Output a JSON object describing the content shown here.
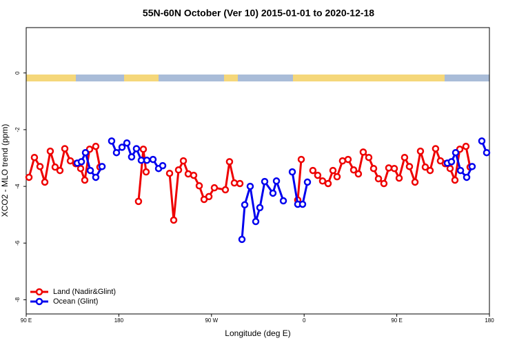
{
  "chart_data": {
    "type": "line",
    "title": "55N-60N October (Ver 10)   2015-01-01 to 2020-12-18",
    "x_label": "Longitude (deg E)",
    "y_label": "XCO2 - MLO trend (ppm)",
    "xlim": [
      90,
      540
    ],
    "xticks": [
      {
        "value": 90,
        "label": "90 E"
      },
      {
        "value": 180,
        "label": "180"
      },
      {
        "value": 270,
        "label": "90 W"
      },
      {
        "value": 360,
        "label": "0"
      },
      {
        "value": 450,
        "label": "90 E"
      },
      {
        "value": 540,
        "label": "180"
      }
    ],
    "ylim": [
      -8.5,
      1.6
    ],
    "yticks": [
      0,
      -2,
      -4,
      -6,
      -8
    ],
    "legend": "bottom-left",
    "series": [
      {
        "name": "Land (Nadir&Glint)",
        "color": "#ee0000",
        "x": [
          92.7,
          98.0,
          103.4,
          108.1,
          113.4,
          118.1,
          122.8,
          127.5,
          132.9,
          138.2,
          142.9,
          146.9,
          151.6,
          157.6,
          161.6,
          null,
          199.1,
          203.8,
          206.5,
          null,
          229.3,
          233.3,
          238.0,
          242.7,
          247.4,
          252.7,
          258.1,
          262.8,
          267.5,
          272.8,
          283.5,
          287.5,
          292.2,
          297.6,
          null,
          353.8,
          357.2,
          null,
          368.5,
          373.2,
          377.9,
          383.3,
          388.0,
          392.0,
          397.3,
          402.7,
          408.1,
          412.7,
          417.4,
          422.8,
          427.5,
          432.2,
          437.5,
          442.2,
          447.6,
          452.3,
          457.6,
          462.3,
          467.7,
          473.0,
          477.7,
          482.4,
          487.7,
          492.4,
          497.1,
          501.8,
          506.5,
          511.2,
          517.2,
          521.2
        ],
        "values": [
          -3.68,
          -2.98,
          -3.3,
          -3.85,
          -2.76,
          -3.32,
          -3.44,
          -2.67,
          -3.1,
          -3.2,
          -3.37,
          -3.78,
          -2.69,
          -2.59,
          -3.32,
          null,
          -4.53,
          -2.69,
          -3.49,
          null,
          -3.54,
          -5.19,
          -3.42,
          -3.1,
          -3.56,
          -3.61,
          -3.98,
          -4.46,
          -4.36,
          -4.05,
          -4.12,
          -3.13,
          -3.88,
          -3.9,
          null,
          -4.48,
          -3.05,
          null,
          -3.44,
          -3.61,
          -3.81,
          -3.9,
          -3.44,
          -3.66,
          -3.1,
          -3.05,
          -3.42,
          -3.56,
          -2.79,
          -2.98,
          -3.37,
          -3.73,
          -3.9,
          -3.35,
          -3.37,
          -3.71,
          -2.98,
          -3.3,
          -3.85,
          -2.76,
          -3.32,
          -3.44,
          -2.67,
          -3.1,
          -3.2,
          -3.37,
          -3.78,
          -2.69,
          -2.59,
          -3.32
        ]
      },
      {
        "name": "Ocean (Glint)",
        "color": "#0000ee",
        "x": [
          139.6,
          143.6,
          147.6,
          152.3,
          157.6,
          163.7,
          null,
          173.0,
          177.7,
          183.1,
          187.8,
          192.4,
          197.1,
          201.8,
          207.2,
          213.2,
          218.6,
          222.6,
          null,
          299.6,
          302.3,
          307.6,
          313.0,
          317.0,
          321.7,
          329.7,
          333.1,
          339.8,
          null,
          348.5,
          353.8,
          358.5,
          363.2,
          null,
          499.1,
          503.1,
          507.2,
          511.9,
          517.9,
          523.2,
          null,
          532.6,
          537.3
        ],
        "values": [
          -3.18,
          -3.13,
          -2.81,
          -3.44,
          -3.68,
          -3.3,
          null,
          -2.4,
          -2.81,
          -2.62,
          -2.47,
          -2.96,
          -2.67,
          -3.08,
          -3.08,
          -3.05,
          -3.37,
          -3.27,
          null,
          -5.87,
          -4.65,
          -4.0,
          -5.24,
          -4.75,
          -3.83,
          -4.24,
          -3.81,
          -4.51,
          null,
          -3.49,
          -4.63,
          -4.63,
          -3.85,
          null,
          -3.18,
          -3.13,
          -2.81,
          -3.44,
          -3.68,
          -3.3,
          null,
          -2.4,
          -2.81
        ]
      }
    ]
  }
}
